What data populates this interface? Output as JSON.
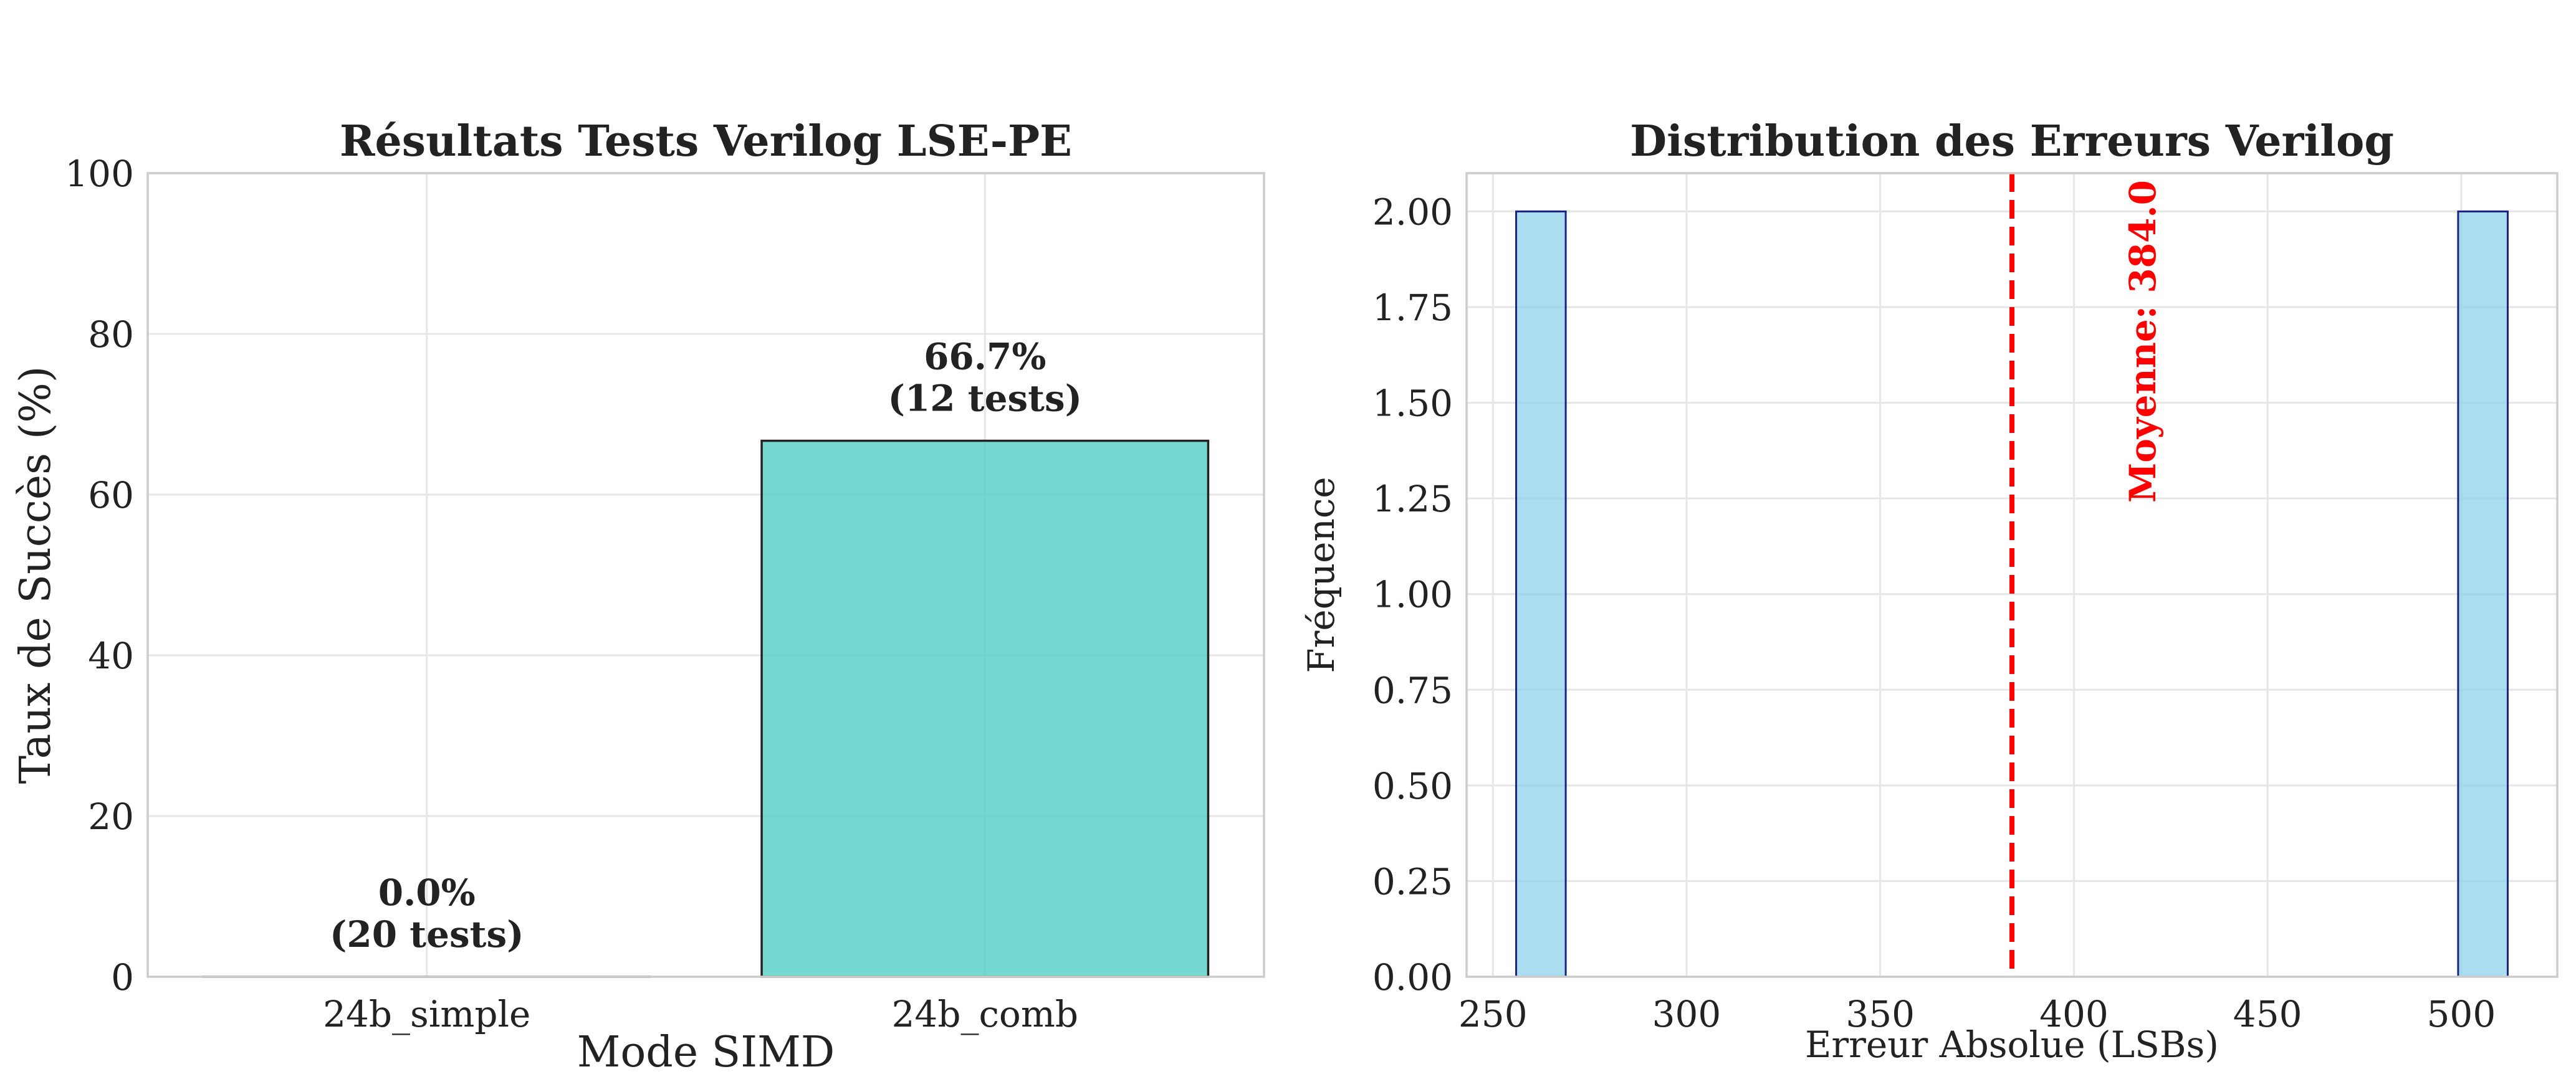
{
  "chart_data": [
    {
      "type": "bar",
      "title": "Résultats Tests Verilog LSE-PE",
      "xlabel": "Mode SIMD",
      "ylabel": "Taux de Succès (%)",
      "categories": [
        "24b_simple",
        "24b_comb"
      ],
      "values": [
        0.0,
        66.7
      ],
      "bar_labels": [
        [
          "0.0%",
          "(20 tests)"
        ],
        [
          "66.7%",
          "(12 tests)"
        ]
      ],
      "ylim": [
        0,
        100
      ],
      "yticks": [
        0,
        20,
        40,
        60,
        80,
        100
      ],
      "ytick_labels": [
        "0",
        "20",
        "40",
        "60",
        "80",
        "100"
      ],
      "grid": true,
      "colors": {
        "bar": "#4ecdc4",
        "bar_edge": "#222222"
      }
    },
    {
      "type": "histogram",
      "title": "Distribution des Erreurs Verilog",
      "xlabel": "Erreur Absolue (LSBs)",
      "ylabel": "Fréquence",
      "bins": [
        {
          "start": 256.0,
          "end": 268.8,
          "count": 2
        },
        {
          "start": 268.8,
          "end": 281.6,
          "count": 0
        },
        {
          "start": 281.6,
          "end": 294.4,
          "count": 0
        },
        {
          "start": 294.4,
          "end": 307.2,
          "count": 0
        },
        {
          "start": 307.2,
          "end": 320.0,
          "count": 0
        },
        {
          "start": 320.0,
          "end": 332.8,
          "count": 0
        },
        {
          "start": 332.8,
          "end": 345.6,
          "count": 0
        },
        {
          "start": 345.6,
          "end": 358.4,
          "count": 0
        },
        {
          "start": 358.4,
          "end": 371.2,
          "count": 0
        },
        {
          "start": 371.2,
          "end": 384.0,
          "count": 0
        },
        {
          "start": 384.0,
          "end": 396.8,
          "count": 0
        },
        {
          "start": 396.8,
          "end": 409.6,
          "count": 0
        },
        {
          "start": 409.6,
          "end": 422.4,
          "count": 0
        },
        {
          "start": 422.4,
          "end": 435.2,
          "count": 0
        },
        {
          "start": 435.2,
          "end": 448.0,
          "count": 0
        },
        {
          "start": 448.0,
          "end": 460.8,
          "count": 0
        },
        {
          "start": 460.8,
          "end": 473.6,
          "count": 0
        },
        {
          "start": 473.6,
          "end": 486.4,
          "count": 0
        },
        {
          "start": 486.4,
          "end": 499.2,
          "count": 0
        },
        {
          "start": 499.2,
          "end": 512.0,
          "count": 2
        }
      ],
      "xlim": [
        243.2,
        524.8
      ],
      "ylim": [
        0,
        2.1
      ],
      "xticks": [
        250,
        300,
        350,
        400,
        450,
        500
      ],
      "xtick_labels": [
        "250",
        "300",
        "350",
        "400",
        "450",
        "500"
      ],
      "yticks": [
        0,
        0.25,
        0.5,
        0.75,
        1.0,
        1.25,
        1.5,
        1.75,
        2.0
      ],
      "ytick_labels": [
        "0.00",
        "0.25",
        "0.50",
        "0.75",
        "1.00",
        "1.25",
        "1.50",
        "1.75",
        "2.00"
      ],
      "mean_line": {
        "x": 384.0,
        "label": "Moyenne: 384.0"
      },
      "grid": true,
      "colors": {
        "bar": "#87ceeb",
        "bar_edge": "#1a237e",
        "mean_line": "#ff0000"
      }
    }
  ]
}
